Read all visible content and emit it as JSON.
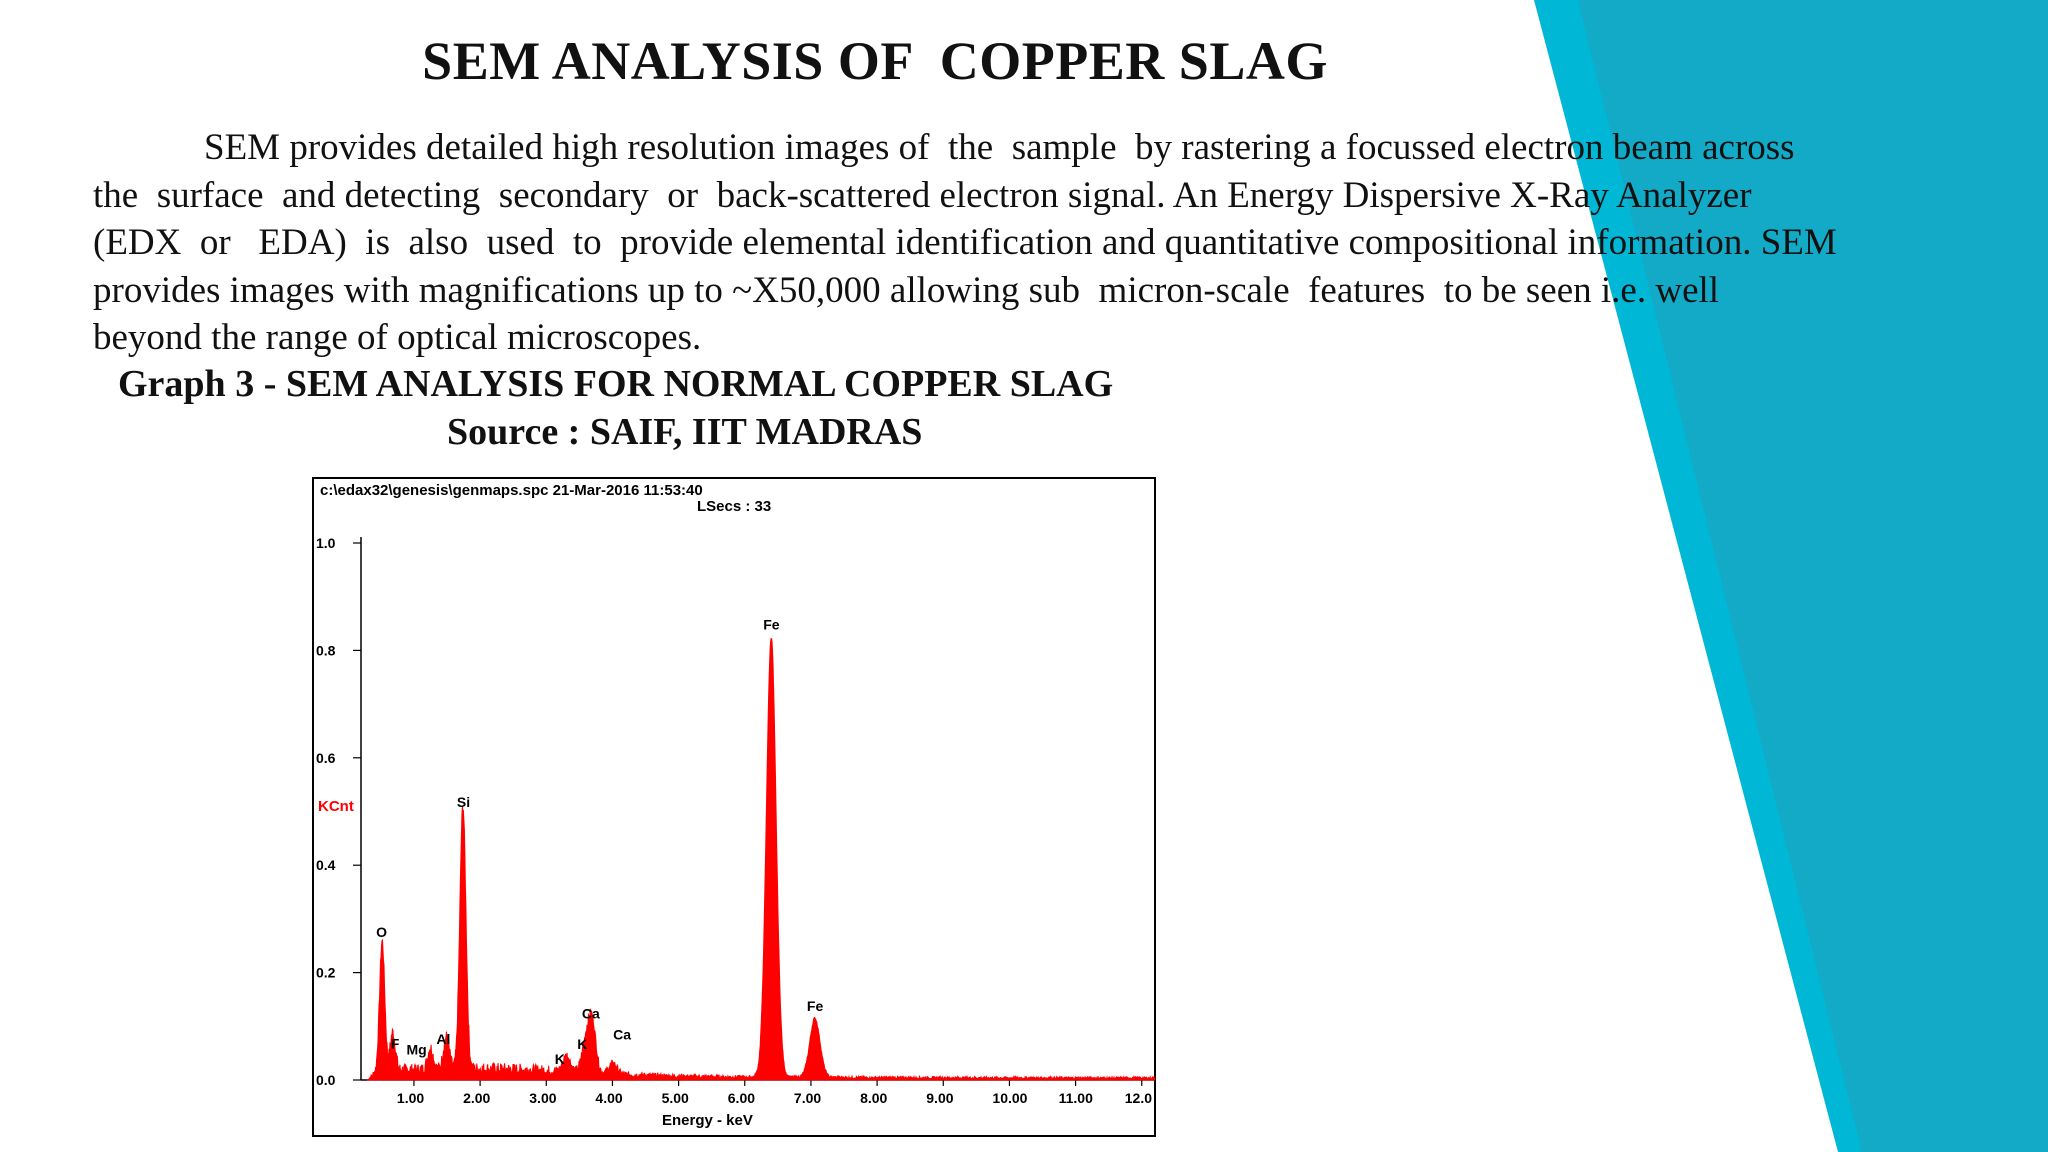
{
  "slide": {
    "title": "SEM ANALYSIS OF  COPPER SLAG",
    "paragraph_lines": [
      "            SEM provides detailed high resolution images of  the  sample  by rastering a focussed electron beam across",
      "the  surface  and detecting  secondary  or  back-scattered electron signal. An Energy Dispersive X-Ray Analyzer",
      "(EDX  or   EDA)  is  also  used  to  provide elemental identification and quantitative compositional information. SEM",
      "provides images with magnifications up to ~X50,000 allowing sub  micron-scale  features  to be seen i.e. well",
      "beyond the range of optical microscopes."
    ],
    "graph_caption": "Graph 3 - SEM ANALYSIS FOR NORMAL COPPER SLAG",
    "source_caption": "Source : SAIF, IIT MADRAS",
    "accent_colors": [
      "#00b7d6",
      "#14a3bf"
    ]
  },
  "chart_data": {
    "type": "line",
    "header_file": "c:\\edax32\\genesis\\genmaps.spc  21-Mar-2016 11:53:40",
    "header_lsecs": "LSecs :  33",
    "xlabel": "Energy - keV",
    "ylabel": "KCnt",
    "xlim": [
      0.2,
      12.2
    ],
    "ylim": [
      0,
      1.0
    ],
    "y_ticks": [
      "1.0",
      "0.8",
      "0.6",
      "0.4",
      "0.2",
      "0.0"
    ],
    "y_tick_values": [
      1.0,
      0.8,
      0.6,
      0.4,
      0.2,
      0.0
    ],
    "x_ticks": [
      "1.00",
      "2.00",
      "3.00",
      "4.00",
      "5.00",
      "6.00",
      "7.00",
      "8.00",
      "9.00",
      "10.00",
      "11.00",
      "12.0"
    ],
    "x_tick_values": [
      1,
      2,
      3,
      4,
      5,
      6,
      7,
      8,
      9,
      10,
      11,
      12
    ],
    "series_color": "#ff0000",
    "peaks": [
      {
        "label": "O",
        "energy": 0.52,
        "kcnt": 0.24
      },
      {
        "label": "F",
        "energy": 0.68,
        "kcnt": 0.07
      },
      {
        "label": "Mg",
        "energy": 1.25,
        "kcnt": 0.04
      },
      {
        "label": "Al",
        "energy": 1.49,
        "kcnt": 0.06
      },
      {
        "label": "Si",
        "energy": 1.74,
        "kcnt": 0.49
      },
      {
        "label": "K",
        "energy": 3.31,
        "kcnt": 0.03
      },
      {
        "label": "K",
        "energy": 3.59,
        "kcnt": 0.05
      },
      {
        "label": "Ca",
        "energy": 3.69,
        "kcnt": 0.1
      },
      {
        "label": "Ca",
        "energy": 4.01,
        "kcnt": 0.02
      },
      {
        "label": "Fe",
        "energy": 6.4,
        "kcnt": 0.82
      },
      {
        "label": "Fe",
        "energy": 7.06,
        "kcnt": 0.11
      }
    ]
  }
}
